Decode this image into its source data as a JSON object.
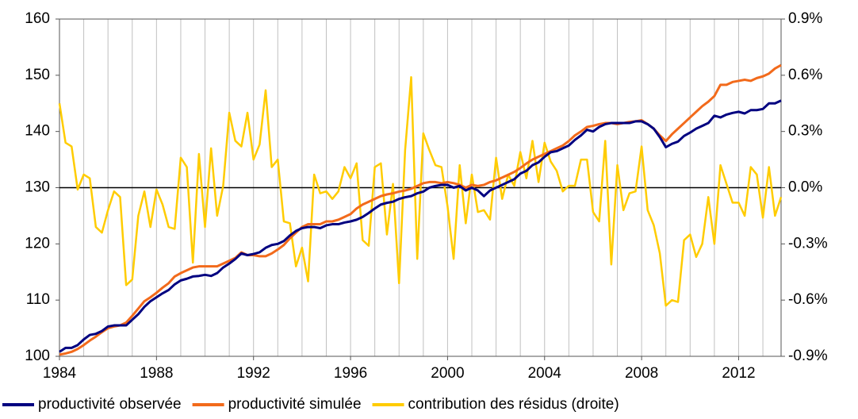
{
  "chart_data": {
    "type": "line",
    "x": [
      1984,
      1984.25,
      1984.5,
      1984.75,
      1985,
      1985.25,
      1985.5,
      1985.75,
      1986,
      1986.25,
      1986.5,
      1986.75,
      1987,
      1987.25,
      1987.5,
      1987.75,
      1988,
      1988.25,
      1988.5,
      1988.75,
      1989,
      1989.25,
      1989.5,
      1989.75,
      1990,
      1990.25,
      1990.5,
      1990.75,
      1991,
      1991.25,
      1991.5,
      1991.75,
      1992,
      1992.25,
      1992.5,
      1992.75,
      1993,
      1993.25,
      1993.5,
      1993.75,
      1994,
      1994.25,
      1994.5,
      1994.75,
      1995,
      1995.25,
      1995.5,
      1995.75,
      1996,
      1996.25,
      1996.5,
      1996.75,
      1997,
      1997.25,
      1997.5,
      1997.75,
      1998,
      1998.25,
      1998.5,
      1998.75,
      1999,
      1999.25,
      1999.5,
      1999.75,
      2000,
      2000.25,
      2000.5,
      2000.75,
      2001,
      2001.25,
      2001.5,
      2001.75,
      2002,
      2002.25,
      2002.5,
      2002.75,
      2003,
      2003.25,
      2003.5,
      2003.75,
      2004,
      2004.25,
      2004.5,
      2004.75,
      2005,
      2005.25,
      2005.5,
      2005.75,
      2006,
      2006.25,
      2006.5,
      2006.75,
      2007,
      2007.25,
      2007.5,
      2007.75,
      2008,
      2008.25,
      2008.5,
      2008.75,
      2009,
      2009.25,
      2009.5,
      2009.75,
      2010,
      2010.25,
      2010.5,
      2010.75,
      2011,
      2011.25,
      2011.5,
      2011.75,
      2012,
      2012.25,
      2012.5,
      2012.75,
      2013,
      2013.25,
      2013.5,
      2013.75
    ],
    "series": [
      {
        "name": "productivité observée",
        "color": "#000080",
        "values": [
          100.8,
          101.5,
          101.5,
          102,
          103,
          103.8,
          104,
          104.5,
          105.3,
          105.5,
          105.5,
          105.5,
          106.5,
          107.5,
          108.8,
          109.8,
          110.5,
          111.2,
          111.8,
          112.8,
          113.5,
          113.8,
          114.2,
          114.3,
          114.5,
          114.3,
          114.8,
          115.8,
          116.5,
          117.3,
          118.3,
          118,
          118.2,
          118.5,
          119.3,
          119.8,
          120,
          120.5,
          121.5,
          122.3,
          122.8,
          123,
          123,
          122.8,
          123.3,
          123.5,
          123.5,
          123.8,
          124,
          124.3,
          124.8,
          125.5,
          126.3,
          127,
          127.3,
          127.5,
          128,
          128.3,
          128.5,
          129,
          129.3,
          130,
          130.3,
          130.5,
          130.5,
          130,
          130.3,
          129.5,
          130,
          129.5,
          128.5,
          129.5,
          130,
          130.5,
          131,
          131.5,
          132.5,
          133,
          134,
          134.5,
          135.5,
          136.3,
          136.5,
          137,
          137.5,
          138.5,
          139.3,
          140.3,
          140,
          140.8,
          141.3,
          141.5,
          141.5,
          141.5,
          141.5,
          141.8,
          141.8,
          141.3,
          140.5,
          139,
          137.2,
          137.8,
          138.2,
          139.2,
          139.8,
          140.5,
          141,
          141.5,
          142.8,
          142.5,
          143,
          143.3,
          143.5,
          143.2,
          143.8,
          143.8,
          144,
          145,
          145,
          145.5
        ]
      },
      {
        "name": "productivité simulée",
        "color": "#f26a1b",
        "values": [
          100.3,
          100.5,
          100.8,
          101.3,
          102,
          102.8,
          103.5,
          104.3,
          105,
          105.3,
          105.5,
          106,
          107.2,
          108.5,
          109.8,
          110.5,
          111.3,
          112.2,
          113,
          114.2,
          114.8,
          115.3,
          115.8,
          116,
          116,
          116,
          116,
          116.5,
          117,
          117.5,
          118.5,
          118,
          118,
          117.8,
          117.8,
          118.3,
          119,
          119.8,
          121,
          122,
          123,
          123.5,
          123.5,
          123.5,
          124,
          124,
          124.3,
          124.8,
          125.3,
          126.3,
          127,
          127.5,
          128,
          128.5,
          128.8,
          129,
          129.3,
          129.5,
          129.8,
          130.3,
          130.8,
          131,
          131,
          130.8,
          131,
          130.8,
          130.5,
          130,
          130.5,
          130.3,
          130.5,
          131,
          131.3,
          131.8,
          132.3,
          132.8,
          133.5,
          134.3,
          135,
          135.5,
          136,
          136.5,
          137,
          137.5,
          138.3,
          139.3,
          140,
          140.8,
          141,
          141.3,
          141.5,
          141.5,
          141.3,
          141.5,
          141.7,
          141.8,
          142,
          141.3,
          140.5,
          139.3,
          138.3,
          139.5,
          140.5,
          141.5,
          142.5,
          143.5,
          144.5,
          145.3,
          146.3,
          148.3,
          148.3,
          148.8,
          149,
          149.2,
          149,
          149.5,
          149.8,
          150.3,
          151.2,
          151.8
        ]
      },
      {
        "name": "contribution des résidus (droite)",
        "color": "#ffcc00",
        "axis": "y2",
        "values": [
          0.45,
          0.24,
          0.22,
          -0.01,
          0.07,
          0.05,
          -0.21,
          -0.24,
          -0.12,
          -0.02,
          -0.05,
          -0.52,
          -0.49,
          -0.15,
          -0.02,
          -0.21,
          -0.01,
          -0.09,
          -0.21,
          -0.22,
          0.16,
          0.11,
          -0.4,
          0.18,
          -0.21,
          0.21,
          -0.15,
          0.01,
          0.4,
          0.25,
          0.22,
          0.4,
          0.15,
          0.23,
          0.52,
          0.11,
          0.15,
          -0.18,
          -0.19,
          -0.42,
          -0.32,
          -0.5,
          0.07,
          -0.03,
          -0.02,
          -0.06,
          -0.02,
          0.11,
          0.05,
          0.13,
          -0.28,
          -0.31,
          0.11,
          0.13,
          -0.25,
          0.02,
          -0.51,
          0.2,
          0.59,
          -0.38,
          0.29,
          0.2,
          0.12,
          0.11,
          -0.1,
          -0.38,
          0.12,
          -0.19,
          0.07,
          -0.13,
          -0.12,
          -0.17,
          0.16,
          -0.06,
          0.07,
          0.01,
          0.19,
          0.05,
          0.25,
          0.03,
          0.24,
          0.14,
          0.09,
          -0.02,
          0.01,
          0.01,
          0.15,
          0.15,
          -0.13,
          -0.18,
          0.25,
          -0.41,
          0.12,
          -0.12,
          -0.03,
          -0.02,
          0.22,
          -0.12,
          -0.2,
          -0.35,
          -0.63,
          -0.6,
          -0.61,
          -0.28,
          -0.25,
          -0.37,
          -0.3,
          -0.05,
          -0.3,
          0.12,
          0.02,
          -0.08,
          -0.08,
          -0.15,
          0.11,
          0.07,
          -0.16,
          0.11,
          -0.15,
          -0.05
        ]
      }
    ],
    "xlim": [
      1984,
      2013.75
    ],
    "xticks": [
      1984,
      1988,
      1992,
      1996,
      2000,
      2004,
      2008,
      2012
    ],
    "xgrid": [
      1984,
      1985,
      1986,
      1987,
      1988,
      1989,
      1990,
      1991,
      1992,
      1993,
      1994,
      1995,
      1996,
      1997,
      1998,
      1999,
      2000,
      2001,
      2002,
      2003,
      2004,
      2005,
      2006,
      2007,
      2008,
      2009,
      2010,
      2011,
      2012,
      2013
    ],
    "ylim": [
      100,
      160
    ],
    "yticks": [
      100,
      110,
      120,
      130,
      140,
      150,
      160
    ],
    "y2lim": [
      -0.9,
      0.9
    ],
    "y2ticks": [
      {
        "value": -0.9,
        "label": "-0.9%"
      },
      {
        "value": -0.6,
        "label": "-0.6%"
      },
      {
        "value": -0.3,
        "label": "-0.3%"
      },
      {
        "value": 0,
        "label": "0.0%"
      },
      {
        "value": 0.3,
        "label": "0.3%"
      },
      {
        "value": 0.6,
        "label": "0.6%"
      },
      {
        "value": 0.9,
        "label": "0.9%"
      }
    ],
    "legend": "bottom"
  }
}
